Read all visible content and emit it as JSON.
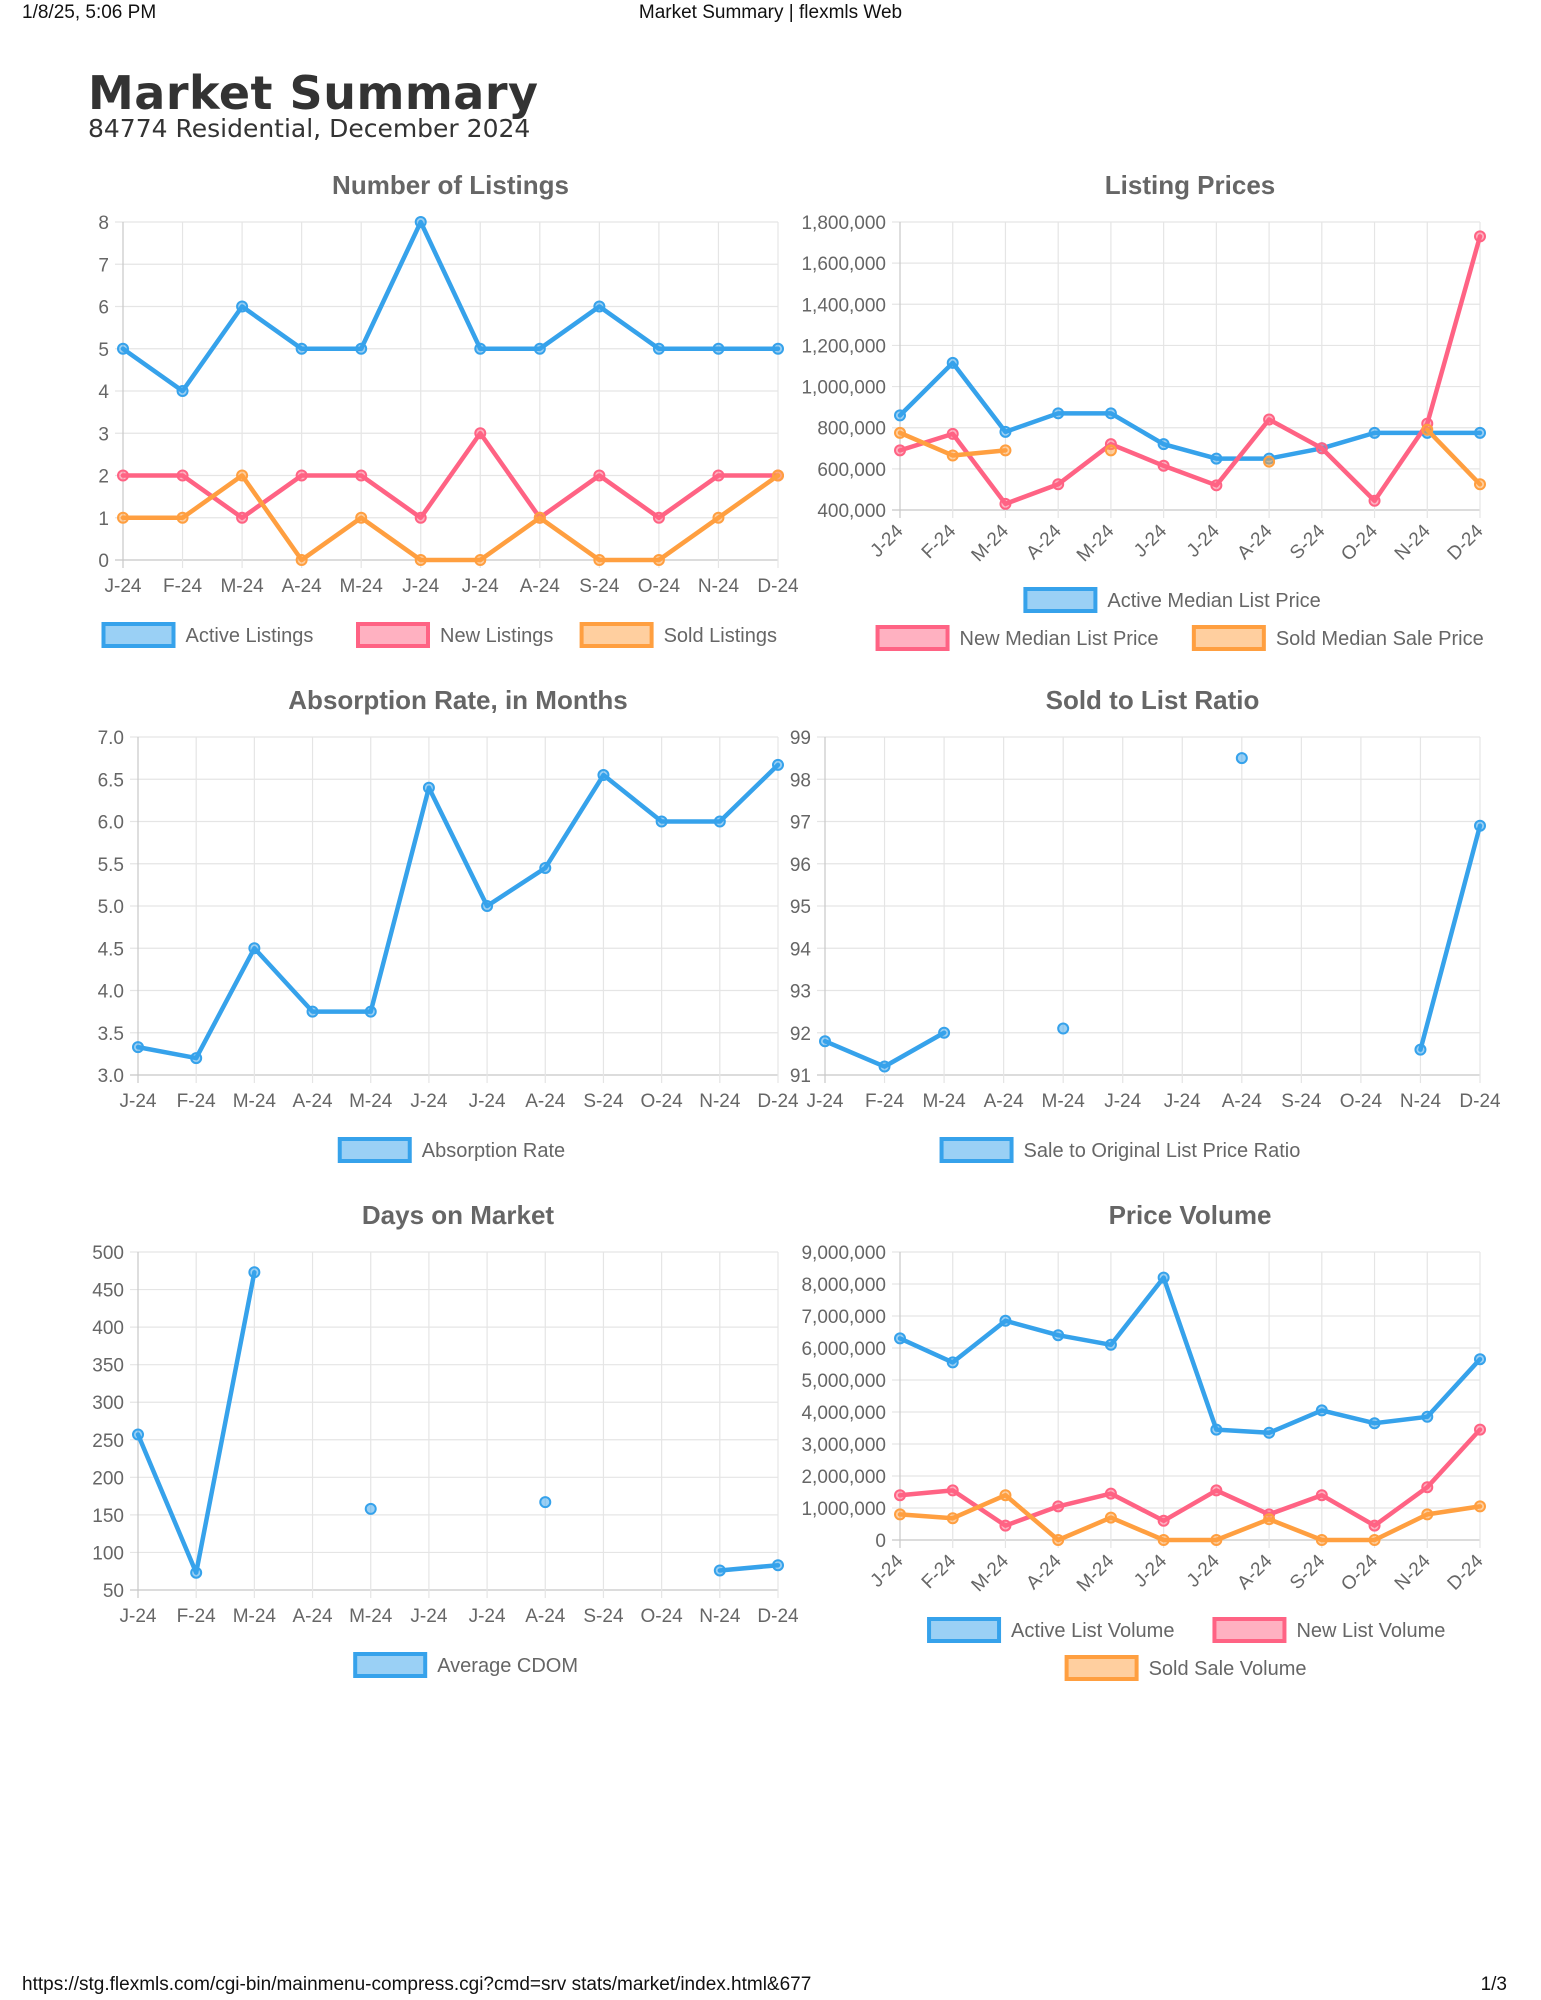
{
  "header": {
    "datetime": "1/8/25, 5:06 PM",
    "page_title": "Market Summary | flexmls Web"
  },
  "footer": {
    "url": "https://stg.flexmls.com/cgi-bin/mainmenu-compress.cgi?cmd=srv stats/market/index.html&677",
    "page": "1/3"
  },
  "report": {
    "title": "Market Summary",
    "subtitle": "84774 Residential, December 2024"
  },
  "colors": {
    "blue": "#36a2eb",
    "red": "#ff6384",
    "orange": "#ff9f40",
    "grid": "#e5e5e5",
    "axis_text": "#666666"
  },
  "chart_data": [
    {
      "type": "line",
      "title": "Number of Listings",
      "categories": [
        "J-24",
        "F-24",
        "M-24",
        "A-24",
        "M-24",
        "J-24",
        "J-24",
        "A-24",
        "S-24",
        "O-24",
        "N-24",
        "D-24"
      ],
      "yticks": [
        "0",
        "1",
        "2",
        "3",
        "4",
        "5",
        "6",
        "7",
        "8"
      ],
      "ylim": [
        0,
        8
      ],
      "rotate_x_labels": false,
      "legend_position": "bottom",
      "series": [
        {
          "name": "Active Listings",
          "color": "#36a2eb",
          "values": [
            5,
            4,
            6,
            5,
            5,
            8,
            5,
            5,
            6,
            5,
            5,
            5
          ]
        },
        {
          "name": "New Listings",
          "color": "#ff6384",
          "values": [
            2,
            2,
            1,
            2,
            2,
            1,
            3,
            1,
            2,
            1,
            2,
            2
          ]
        },
        {
          "name": "Sold Listings",
          "color": "#ff9f40",
          "values": [
            1,
            1,
            2,
            0,
            1,
            0,
            0,
            1,
            0,
            0,
            1,
            2
          ]
        }
      ]
    },
    {
      "type": "line",
      "title": "Listing Prices",
      "categories": [
        "J-24",
        "F-24",
        "M-24",
        "A-24",
        "M-24",
        "J-24",
        "J-24",
        "A-24",
        "S-24",
        "O-24",
        "N-24",
        "D-24"
      ],
      "yticks": [
        "400,000",
        "600,000",
        "800,000",
        "1,000,000",
        "1,200,000",
        "1,400,000",
        "1,600,000",
        "1,800,000"
      ],
      "ylim": [
        400000,
        1800000
      ],
      "rotate_x_labels": true,
      "legend_position": "bottom",
      "series": [
        {
          "name": "Active Median List Price",
          "color": "#36a2eb",
          "values": [
            860000,
            1115000,
            780000,
            870000,
            870000,
            720000,
            650000,
            650000,
            700000,
            775000,
            775000,
            775000
          ]
        },
        {
          "name": "New Median List Price",
          "color": "#ff6384",
          "values": [
            690000,
            770000,
            430000,
            525000,
            720000,
            615000,
            520000,
            840000,
            700000,
            445000,
            820000,
            1730000
          ]
        },
        {
          "name": "Sold Median Sale Price",
          "color": "#ff9f40",
          "values": [
            775000,
            665000,
            690000,
            null,
            690000,
            null,
            null,
            635000,
            null,
            null,
            790000,
            525000
          ]
        }
      ]
    },
    {
      "type": "line",
      "title": "Absorption Rate, in Months",
      "categories": [
        "J-24",
        "F-24",
        "M-24",
        "A-24",
        "M-24",
        "J-24",
        "J-24",
        "A-24",
        "S-24",
        "O-24",
        "N-24",
        "D-24"
      ],
      "yticks": [
        "3.0",
        "3.5",
        "4.0",
        "4.5",
        "5.0",
        "5.5",
        "6.0",
        "6.5",
        "7.0"
      ],
      "ylim": [
        3.0,
        7.0
      ],
      "rotate_x_labels": false,
      "legend_position": "bottom",
      "series": [
        {
          "name": "Absorption Rate",
          "color": "#36a2eb",
          "values": [
            3.33,
            3.2,
            4.5,
            3.75,
            3.75,
            6.4,
            5.0,
            5.45,
            6.55,
            6.0,
            6.0,
            6.67
          ]
        }
      ]
    },
    {
      "type": "line",
      "title": "Sold to List Ratio",
      "categories": [
        "J-24",
        "F-24",
        "M-24",
        "A-24",
        "M-24",
        "J-24",
        "J-24",
        "A-24",
        "S-24",
        "O-24",
        "N-24",
        "D-24"
      ],
      "yticks": [
        "91",
        "92",
        "93",
        "94",
        "95",
        "96",
        "97",
        "98",
        "99"
      ],
      "ylim": [
        91,
        99
      ],
      "rotate_x_labels": false,
      "legend_position": "bottom",
      "series": [
        {
          "name": "Sale to Original List Price Ratio",
          "color": "#36a2eb",
          "values": [
            91.8,
            91.2,
            92.0,
            null,
            92.1,
            null,
            null,
            98.5,
            null,
            null,
            91.6,
            96.9
          ]
        }
      ]
    },
    {
      "type": "line",
      "title": "Days on Market",
      "categories": [
        "J-24",
        "F-24",
        "M-24",
        "A-24",
        "M-24",
        "J-24",
        "J-24",
        "A-24",
        "S-24",
        "O-24",
        "N-24",
        "D-24"
      ],
      "yticks": [
        "50",
        "100",
        "150",
        "200",
        "250",
        "300",
        "350",
        "400",
        "450",
        "500"
      ],
      "ylim": [
        50,
        500
      ],
      "rotate_x_labels": false,
      "legend_position": "bottom",
      "series": [
        {
          "name": "Average CDOM",
          "color": "#36a2eb",
          "values": [
            257,
            73,
            473,
            null,
            158,
            null,
            null,
            167,
            null,
            null,
            76,
            83
          ]
        }
      ]
    },
    {
      "type": "line",
      "title": "Price Volume",
      "categories": [
        "J-24",
        "F-24",
        "M-24",
        "A-24",
        "M-24",
        "J-24",
        "J-24",
        "A-24",
        "S-24",
        "O-24",
        "N-24",
        "D-24"
      ],
      "yticks": [
        "0",
        "1,000,000",
        "2,000,000",
        "3,000,000",
        "4,000,000",
        "5,000,000",
        "6,000,000",
        "7,000,000",
        "8,000,000",
        "9,000,000"
      ],
      "ylim": [
        0,
        9000000
      ],
      "rotate_x_labels": true,
      "legend_position": "bottom",
      "series": [
        {
          "name": "Active List Volume",
          "color": "#36a2eb",
          "values": [
            6300000,
            5550000,
            6850000,
            6400000,
            6100000,
            8200000,
            3450000,
            3350000,
            4050000,
            3650000,
            3850000,
            5650000
          ]
        },
        {
          "name": "New List Volume",
          "color": "#ff6384",
          "values": [
            1400000,
            1550000,
            450000,
            1050000,
            1450000,
            600000,
            1550000,
            800000,
            1400000,
            450000,
            1650000,
            3450000
          ]
        },
        {
          "name": "Sold Sale Volume",
          "color": "#ff9f40",
          "values": [
            800000,
            680000,
            1400000,
            0,
            700000,
            0,
            0,
            650000,
            0,
            0,
            800000,
            1050000
          ]
        }
      ]
    }
  ]
}
